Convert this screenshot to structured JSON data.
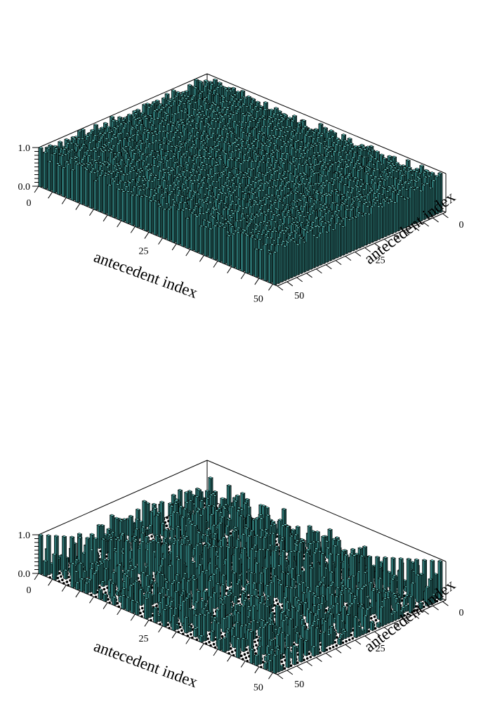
{
  "colors": {
    "bar_side": "#2a6f6d",
    "bar_top": "#6fd6d0",
    "bar_edge": "#000000",
    "frame": "#000000",
    "floor_dot": "#000000"
  },
  "chart_data": [
    {
      "type": "bar3d",
      "title": "",
      "x_axis": {
        "label": "antecedent index",
        "ticks": [
          "0",
          "25",
          "50"
        ],
        "range": [
          0,
          52
        ]
      },
      "y_axis": {
        "label": "antecedent index",
        "ticks": [
          "0",
          "25",
          "50"
        ],
        "range": [
          0,
          52
        ]
      },
      "z_axis": {
        "ticks": [
          "0.0",
          "1.0"
        ],
        "range": [
          0,
          1
        ]
      },
      "grid_size": 52,
      "diagonal_value": 1.0,
      "off_diagonal_typical": 0.85,
      "off_diagonal_range": [
        0.6,
        1.0
      ],
      "zero_fraction": 0.0
    },
    {
      "type": "bar3d",
      "title": "",
      "x_axis": {
        "label": "antecedent index",
        "ticks": [
          "0",
          "25",
          "50"
        ],
        "range": [
          0,
          52
        ]
      },
      "y_axis": {
        "label": "antecedent index",
        "ticks": [
          "0",
          "25",
          "50"
        ],
        "range": [
          0,
          52
        ]
      },
      "z_axis": {
        "ticks": [
          "0.0",
          "1.0"
        ],
        "range": [
          0,
          1
        ]
      },
      "grid_size": 52,
      "diagonal_value": 1.0,
      "off_diagonal_typical": 0.5,
      "off_diagonal_range": [
        0.1,
        0.7
      ],
      "zero_fraction": 0.55
    }
  ]
}
